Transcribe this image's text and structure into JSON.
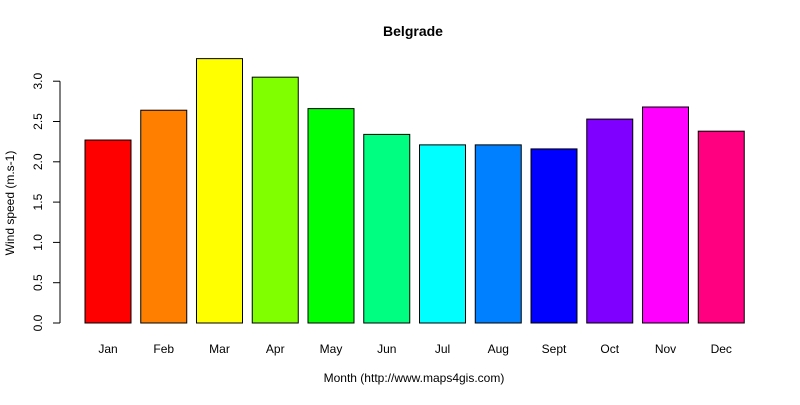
{
  "chart_data": {
    "type": "bar",
    "title": "Belgrade",
    "xlabel": "Month (http://www.maps4gis.com)",
    "ylabel": "Wind speed (m.s-1)",
    "categories": [
      "Jan",
      "Feb",
      "Mar",
      "Apr",
      "May",
      "Jun",
      "Jul",
      "Aug",
      "Sept",
      "Oct",
      "Nov",
      "Dec"
    ],
    "values": [
      2.27,
      2.64,
      3.28,
      3.05,
      2.66,
      2.34,
      2.21,
      2.21,
      2.16,
      2.53,
      2.68,
      2.38
    ],
    "colors": [
      "#FF0000",
      "#FF8000",
      "#FFFF00",
      "#80FF00",
      "#00FF00",
      "#00FF80",
      "#00FFFF",
      "#0080FF",
      "#0000FF",
      "#8000FF",
      "#FF00FF",
      "#FF0080"
    ],
    "yticks": [
      "0.0",
      "0.5",
      "1.0",
      "1.5",
      "2.0",
      "2.5",
      "3.0"
    ],
    "ylim": [
      0,
      3.3
    ],
    "grid": false,
    "legend": "none"
  }
}
